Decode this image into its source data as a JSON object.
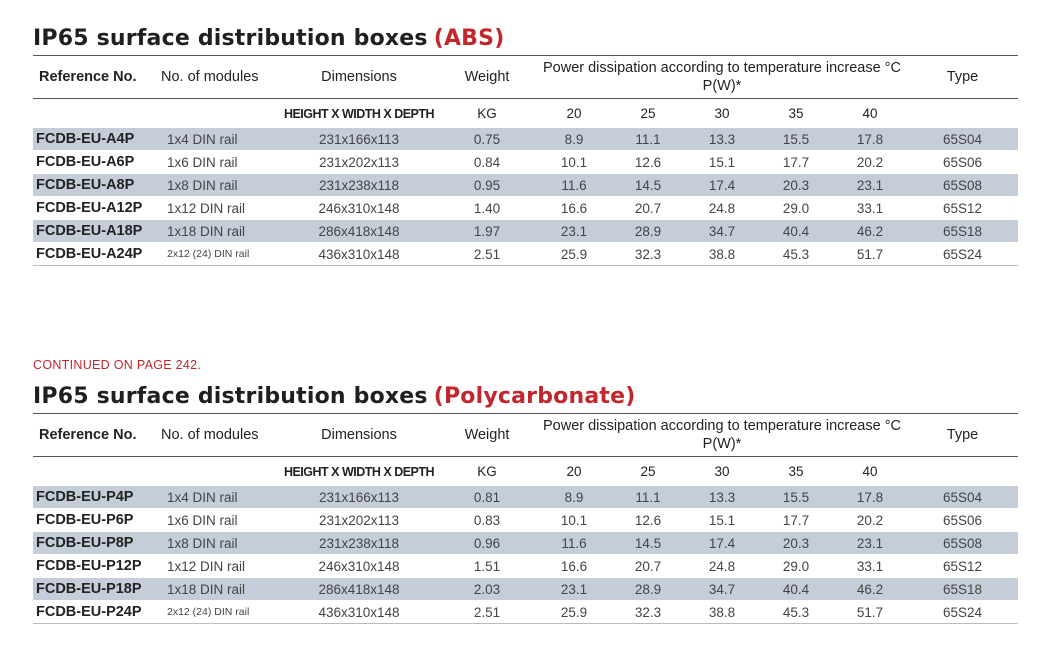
{
  "tables": [
    {
      "title": "IP65 surface distribution boxes",
      "title_accent": "(ABS)",
      "headers": {
        "ref": "Reference No.",
        "modules": "No. of modules",
        "dimensions": "Dimensions",
        "weight": "Weight",
        "power": "Power dissipation according to temperature increase °C P(W)*",
        "type": "Type",
        "dim_sub": "HEIGHT X WIDTH X DEPTH",
        "weight_sub": "KG",
        "temps": [
          "20",
          "25",
          "30",
          "35",
          "40"
        ]
      },
      "rows": [
        {
          "ref": "FCDB-EU-A4P",
          "modules": "1x4 DIN rail",
          "dims": "231x166x113",
          "weight": "0.75",
          "p": [
            "8.9",
            "11.1",
            "13.3",
            "15.5",
            "17.8"
          ],
          "type": "65S04"
        },
        {
          "ref": "FCDB-EU-A6P",
          "modules": "1x6 DIN rail",
          "dims": "231x202x113",
          "weight": "0.84",
          "p": [
            "10.1",
            "12.6",
            "15.1",
            "17.7",
            "20.2"
          ],
          "type": "65S06"
        },
        {
          "ref": "FCDB-EU-A8P",
          "modules": "1x8 DIN rail",
          "dims": "231x238x118",
          "weight": "0.95",
          "p": [
            "11.6",
            "14.5",
            "17.4",
            "20.3",
            "23.1"
          ],
          "type": "65S08"
        },
        {
          "ref": "FCDB-EU-A12P",
          "modules": "1x12 DIN rail",
          "dims": "246x310x148",
          "weight": "1.40",
          "p": [
            "16.6",
            "20.7",
            "24.8",
            "29.0",
            "33.1"
          ],
          "type": "65S12"
        },
        {
          "ref": "FCDB-EU-A18P",
          "modules": "1x18 DIN rail",
          "dims": "286x418x148",
          "weight": "1.97",
          "p": [
            "23.1",
            "28.9",
            "34.7",
            "40.4",
            "46.2"
          ],
          "type": "65S18"
        },
        {
          "ref": "FCDB-EU-A24P",
          "modules": "2x12 (24) DIN rail",
          "dims": "436x310x148",
          "weight": "2.51",
          "p": [
            "25.9",
            "32.3",
            "38.8",
            "45.3",
            "51.7"
          ],
          "type": "65S24"
        }
      ]
    },
    {
      "title": "IP65 surface distribution boxes",
      "title_accent": "(Polycarbonate)",
      "headers": {
        "ref": "Reference No.",
        "modules": "No. of modules",
        "dimensions": "Dimensions",
        "weight": "Weight",
        "power": "Power dissipation according to temperature increase °C P(W)*",
        "type": "Type",
        "dim_sub": "HEIGHT X WIDTH X DEPTH",
        "weight_sub": "KG",
        "temps": [
          "20",
          "25",
          "30",
          "35",
          "40"
        ]
      },
      "rows": [
        {
          "ref": "FCDB-EU-P4P",
          "modules": "1x4 DIN rail",
          "dims": "231x166x113",
          "weight": "0.81",
          "p": [
            "8.9",
            "11.1",
            "13.3",
            "15.5",
            "17.8"
          ],
          "type": "65S04"
        },
        {
          "ref": "FCDB-EU-P6P",
          "modules": "1x6 DIN rail",
          "dims": "231x202x113",
          "weight": "0.83",
          "p": [
            "10.1",
            "12.6",
            "15.1",
            "17.7",
            "20.2"
          ],
          "type": "65S06"
        },
        {
          "ref": "FCDB-EU-P8P",
          "modules": "1x8 DIN rail",
          "dims": "231x238x118",
          "weight": "0.96",
          "p": [
            "11.6",
            "14.5",
            "17.4",
            "20.3",
            "23.1"
          ],
          "type": "65S08"
        },
        {
          "ref": "FCDB-EU-P12P",
          "modules": "1x12 DIN rail",
          "dims": "246x310x148",
          "weight": "1.51",
          "p": [
            "16.6",
            "20.7",
            "24.8",
            "29.0",
            "33.1"
          ],
          "type": "65S12"
        },
        {
          "ref": "FCDB-EU-P18P",
          "modules": "1x18 DIN rail",
          "dims": "286x418x148",
          "weight": "2.03",
          "p": [
            "23.1",
            "28.9",
            "34.7",
            "40.4",
            "46.2"
          ],
          "type": "65S18"
        },
        {
          "ref": "FCDB-EU-P24P",
          "modules": "2x12 (24) DIN rail",
          "dims": "436x310x148",
          "weight": "2.51",
          "p": [
            "25.9",
            "32.3",
            "38.8",
            "45.3",
            "51.7"
          ],
          "type": "65S24"
        }
      ]
    }
  ],
  "continued_note": "CONTINUED ON PAGE 242.",
  "colors": {
    "accent": "#c1272d",
    "row_shade": "#c5ced8"
  }
}
